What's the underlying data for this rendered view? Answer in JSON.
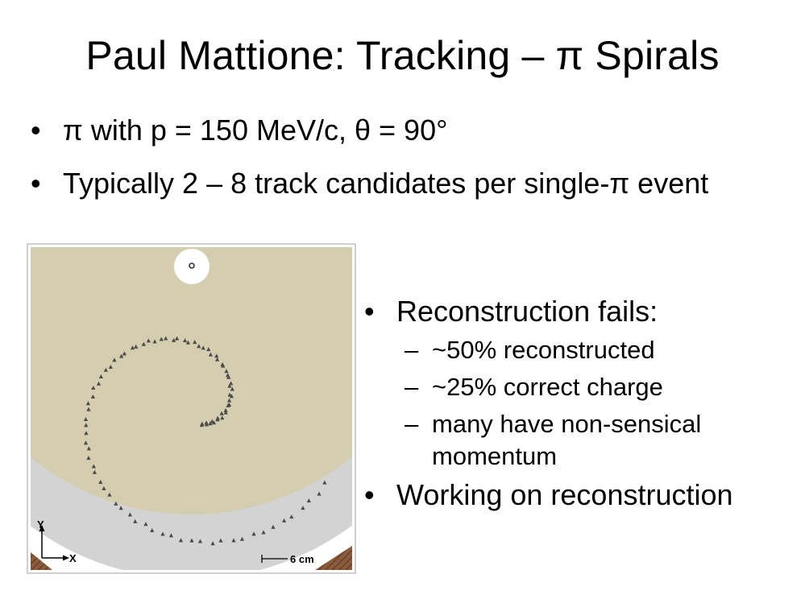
{
  "slide": {
    "title": "Paul Mattione: Tracking – π Spirals",
    "top_bullets": [
      {
        "bullet": "•",
        "text": "π with p = 150 MeV/c, θ = 90°"
      },
      {
        "bullet": "•",
        "text": "Typically 2 – 8 track candidates per single-π event"
      }
    ],
    "right_bullets": [
      {
        "bullet": "•",
        "text": "Reconstruction fails:",
        "subitems": [
          {
            "dash": "–",
            "lines": [
              "~50% reconstructed"
            ]
          },
          {
            "dash": "–",
            "lines": [
              "~25% correct charge"
            ]
          },
          {
            "dash": "–",
            "lines": [
              "many have non-sensical",
              "momentum"
            ]
          }
        ]
      },
      {
        "bullet": "•",
        "text": "Working on reconstruction",
        "subitems": []
      }
    ]
  },
  "figure": {
    "axis_y_label": "Y",
    "axis_x_label": "X",
    "scale_label": "6 cm",
    "colors": {
      "detector_fill": "#d4cdb0",
      "outer_band": "#d3d3d3",
      "hit_marks": "#4a4a4a",
      "corner_hatch": "#8a5a3c"
    }
  }
}
